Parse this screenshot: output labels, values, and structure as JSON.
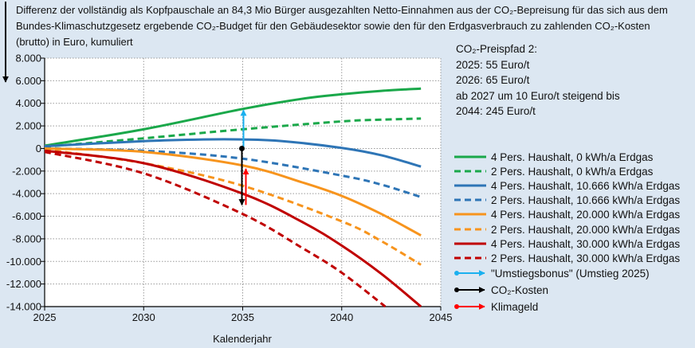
{
  "chart_data": {
    "type": "line",
    "title": "Differenz der vollständig als Kopfpauschale an 84,3 Mio Bürger ausgezahlten Netto-Einnahmen aus der CO₂-Bepreisung für das sich aus dem Bundes-Klimaschutzgesetz ergebende CO₂-Budget für den Gebäudesektor sowie den für den Erdgasverbrauch zu zahlenden CO₂-Kosten (brutto) in Euro, kumuliert",
    "xlabel": "Kalenderjahr",
    "ylabel": "",
    "xlim": [
      2025,
      2045
    ],
    "ylim": [
      -14000,
      8000
    ],
    "xticks": [
      "2025",
      "2030",
      "2035",
      "2040",
      "2045"
    ],
    "yticks": [
      "8.000",
      "6.000",
      "4.000",
      "2.000",
      "0",
      "-2.000",
      "-4.000",
      "-6.000",
      "-8.000",
      "-10.000",
      "-12.000",
      "-14.000"
    ],
    "grid": true,
    "legend_position": "right",
    "series": [
      {
        "name": "4 Pers. Haushalt, 0 kWh/a Erdgas",
        "color": "#1aa84a",
        "dash": false,
        "x": [
          2025,
          2030,
          2035,
          2038,
          2040,
          2042,
          2044
        ],
        "y": [
          250,
          1700,
          3500,
          4400,
          4800,
          5100,
          5300
        ]
      },
      {
        "name": "2 Pers. Haushalt, 0 kWh/a Erdgas",
        "color": "#1aa84a",
        "dash": true,
        "x": [
          2025,
          2030,
          2035,
          2040,
          2042,
          2044
        ],
        "y": [
          150,
          900,
          1700,
          2400,
          2550,
          2650
        ]
      },
      {
        "name": "4 Pers. Haushalt, 10.666 kWh/a Erdgas",
        "color": "#2e75b6",
        "dash": false,
        "x": [
          2025,
          2030,
          2033,
          2035,
          2037,
          2040,
          2042,
          2044
        ],
        "y": [
          200,
          650,
          800,
          800,
          650,
          50,
          -600,
          -1600
        ]
      },
      {
        "name": "2 Pers. Haushalt, 10.666 kWh/a Erdgas",
        "color": "#2e75b6",
        "dash": true,
        "x": [
          2025,
          2030,
          2035,
          2040,
          2042,
          2044
        ],
        "y": [
          0,
          -200,
          -900,
          -2400,
          -3200,
          -4300
        ]
      },
      {
        "name": "4 Pers. Haushalt, 20.000 kWh/a Erdgas",
        "color": "#f7941d",
        "dash": false,
        "x": [
          2025,
          2030,
          2035,
          2038,
          2040,
          2042,
          2044
        ],
        "y": [
          0,
          -300,
          -1500,
          -3000,
          -4200,
          -5800,
          -7700
        ]
      },
      {
        "name": "2 Pers. Haushalt, 20.000 kWh/a Erdgas",
        "color": "#f7941d",
        "dash": true,
        "x": [
          2025,
          2030,
          2035,
          2040,
          2042,
          2044
        ],
        "y": [
          -100,
          -1300,
          -3300,
          -6450,
          -8200,
          -10300
        ]
      },
      {
        "name": "4 Pers. Haushalt, 30.000 kWh/a Erdgas",
        "color": "#c00000",
        "dash": false,
        "x": [
          2025,
          2030,
          2035,
          2038,
          2040,
          2042,
          2044
        ],
        "y": [
          -200,
          -1300,
          -4000,
          -6500,
          -8600,
          -11100,
          -14000
        ]
      },
      {
        "name": "2 Pers. Haushalt, 30.000 kWh/a Erdgas",
        "color": "#c00000",
        "dash": true,
        "x": [
          2025,
          2030,
          2035,
          2038,
          2040,
          2042.2
        ],
        "y": [
          -300,
          -2200,
          -5800,
          -8800,
          -11000,
          -14000
        ]
      }
    ],
    "arrows": [
      {
        "name": "\"Umstiegsbonus\" (Umstieg 2025)",
        "color": "#1ab0ef",
        "x": 2035,
        "from": 0,
        "to": 3400
      },
      {
        "name": "CO₂-Kosten",
        "color": "#000000",
        "x": 2035,
        "from": 0,
        "to": -5000
      },
      {
        "name": "Klimageld",
        "color": "#ff0000",
        "x": 2035,
        "from": -5000,
        "to": -1800
      }
    ]
  },
  "price_path": {
    "lines": [
      "CO₂-Preispfad  2:",
      "2025: 55 Euro/t",
      "2026: 65 Euro/t",
      "ab 2027 um 10 Euro/t steigend bis",
      "2044:  245 Euro/t"
    ]
  }
}
